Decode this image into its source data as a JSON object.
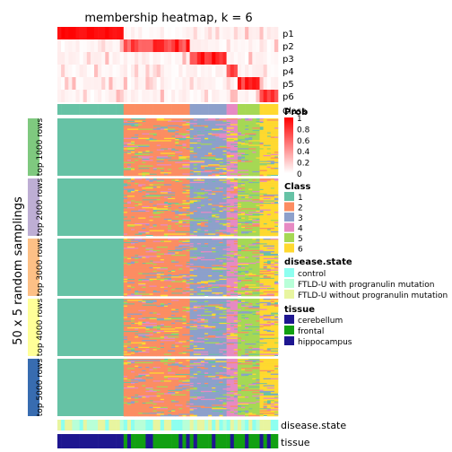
{
  "chart_data": {
    "type": "heatmap",
    "title": "membership heatmap, k = 6",
    "ylabel": "50 x 5 random samplings",
    "membership_rows": [
      "p1",
      "p2",
      "p3",
      "p4",
      "p5",
      "p6"
    ],
    "class_row_label": "Class",
    "sampling_groups": [
      "top 1000 rows",
      "top 2000 rows",
      "top 3000 rows",
      "top 4000 rows",
      "top 5000 rows"
    ],
    "sampling_group_colors": [
      "#7FC97F",
      "#BEAED4",
      "#FDC086",
      "#FFFF99",
      "#386CB0"
    ],
    "bottom_annotations": [
      "disease.state",
      "tissue"
    ],
    "prob_scale": {
      "title": "Prob",
      "ticks": [
        "1",
        "0.8",
        "0.6",
        "0.4",
        "0.2",
        "0"
      ],
      "colors": [
        "#FF0000",
        "#FFFFFF"
      ]
    },
    "class_legend": {
      "title": "Class",
      "labels": [
        "1",
        "2",
        "3",
        "4",
        "5",
        "6"
      ],
      "colors": [
        "#66C2A5",
        "#FC8D62",
        "#8DA0CB",
        "#E78AC3",
        "#A6D854",
        "#FFD92F"
      ]
    },
    "disease_legend": {
      "title": "disease.state",
      "labels": [
        "control",
        "FTLD-U with progranulin mutation",
        "FTLD-U without progranulin mutation"
      ],
      "colors": [
        "#8DFFF0",
        "#B8FFD8",
        "#E8F5A0"
      ]
    },
    "tissue_legend": {
      "title": "tissue",
      "labels": [
        "cerebellum",
        "frontal",
        "hippocampus"
      ],
      "colors": [
        "#1E1690",
        "#12A012",
        "#1E1690"
      ]
    },
    "class_segments": [
      {
        "class": 1,
        "fraction": 0.3
      },
      {
        "class": 2,
        "fraction": 0.3
      },
      {
        "class": 3,
        "fraction": 0.17
      },
      {
        "class": 4,
        "fraction": 0.05
      },
      {
        "class": 5,
        "fraction": 0.1
      },
      {
        "class": 6,
        "fraction": 0.08
      }
    ],
    "n_samples": 60,
    "n_samplings": 250
  }
}
